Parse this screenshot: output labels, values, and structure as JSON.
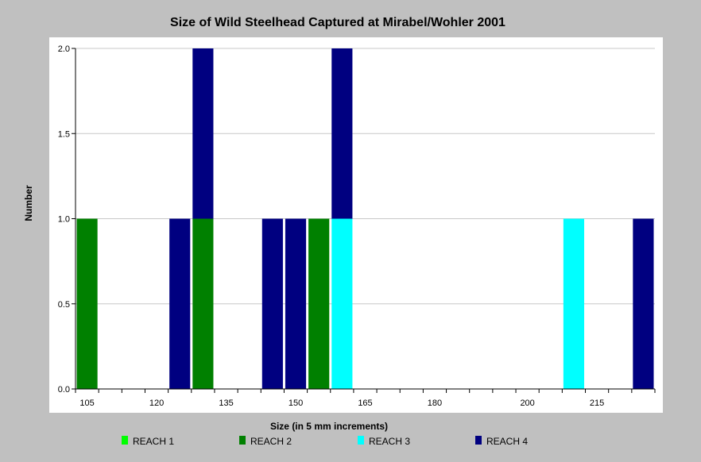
{
  "chart_data": {
    "type": "bar",
    "stacked": true,
    "title": "Size of Wild Steelhead Captured at Mirabel/Wohler 2001",
    "xlabel": "Size (in 5 mm increments)",
    "ylabel": "Number",
    "ylim": [
      0,
      2
    ],
    "yticks": [
      "0.0",
      "0.5",
      "1.0",
      "1.5",
      "2.0"
    ],
    "grid": true,
    "legend_position": "bottom",
    "categories": [
      105,
      110,
      115,
      120,
      125,
      130,
      135,
      140,
      145,
      150,
      155,
      160,
      165,
      170,
      175,
      180,
      185,
      190,
      195,
      200,
      205,
      210,
      215,
      220,
      225
    ],
    "xtick_labels": [
      "105",
      "120",
      "135",
      "150",
      "165",
      "180",
      "200",
      "215"
    ],
    "series": [
      {
        "name": "REACH 1",
        "color": "#00ff00",
        "values": [
          0,
          0,
          0,
          0,
          0,
          0,
          0,
          0,
          0,
          0,
          0,
          0,
          0,
          0,
          0,
          0,
          0,
          0,
          0,
          0,
          0,
          0,
          0,
          0,
          0
        ]
      },
      {
        "name": "REACH 2",
        "color": "#008000",
        "values": [
          1,
          0,
          0,
          0,
          0,
          1,
          0,
          0,
          0,
          0,
          1,
          0,
          0,
          0,
          0,
          0,
          0,
          0,
          0,
          0,
          0,
          0,
          0,
          0,
          0
        ]
      },
      {
        "name": "REACH 3",
        "color": "#00ffff",
        "values": [
          0,
          0,
          0,
          0,
          0,
          0,
          0,
          0,
          0,
          0,
          0,
          1,
          0,
          0,
          0,
          0,
          0,
          0,
          0,
          0,
          0,
          1,
          0,
          0,
          0
        ]
      },
      {
        "name": "REACH 4",
        "color": "#000080",
        "values": [
          0,
          0,
          0,
          0,
          1,
          1,
          0,
          0,
          1,
          1,
          0,
          1,
          0,
          0,
          0,
          0,
          0,
          0,
          0,
          0,
          0,
          0,
          0,
          0,
          1
        ]
      }
    ]
  }
}
